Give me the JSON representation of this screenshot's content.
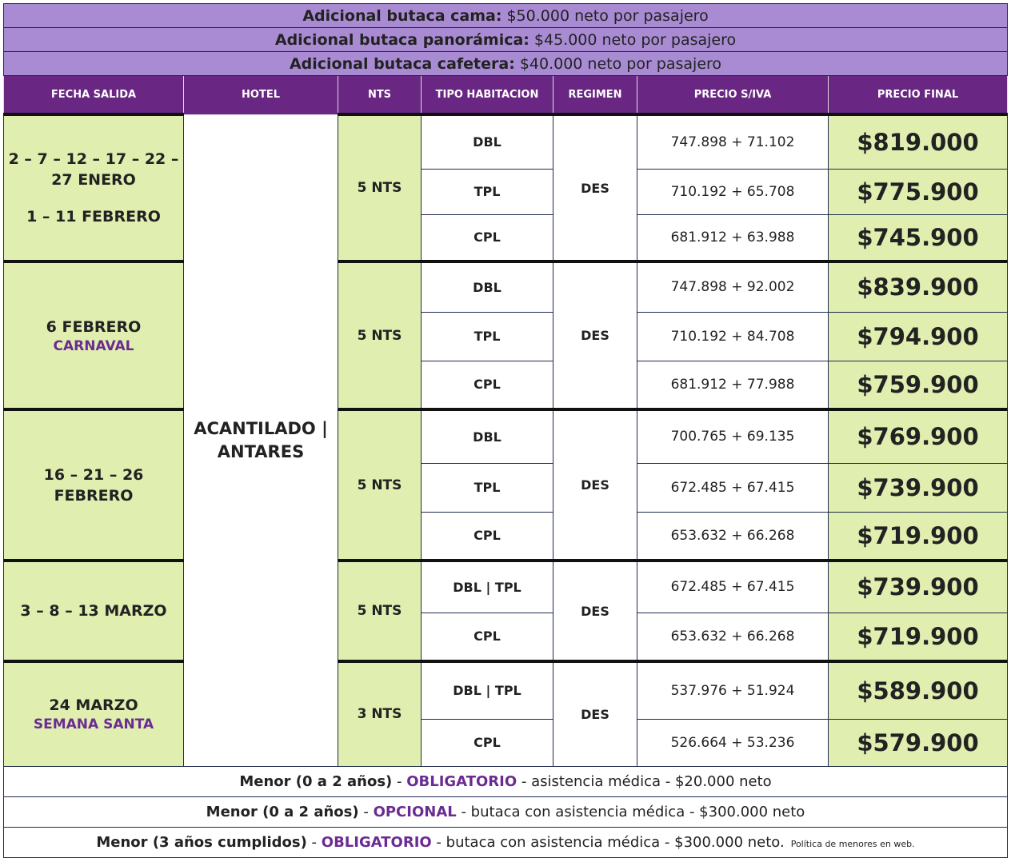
{
  "supplements": [
    {
      "label": "Adicional butaca cama:",
      "text": "$50.000 neto por pasajero"
    },
    {
      "label": "Adicional butaca panorámica:",
      "text": "$45.000 neto por pasajero"
    },
    {
      "label": "Adicional butaca cafetera:",
      "text": "$40.000 neto por pasajero"
    }
  ],
  "table": {
    "headers": [
      "FECHA SALIDA",
      "HOTEL",
      "NTS",
      "TIPO HABITACION",
      "REGIMEN",
      "PRECIO S/IVA",
      "PRECIO FINAL"
    ],
    "hotel": "ACANTILADO | ANTARES",
    "groups": [
      {
        "dates": [
          "2 – 7 – 12 – 17 – 22 – 27 ENERO",
          "1 – 11 FEBRERO"
        ],
        "nts": "5 NTS",
        "regimen": "DES",
        "rows": [
          {
            "room": "DBL",
            "base": "747.898 + 71.102",
            "final": "$819.000"
          },
          {
            "room": "TPL",
            "base": "710.192 + 65.708",
            "final": "$775.900"
          },
          {
            "room": "CPL",
            "base": "681.912 + 63.988",
            "final": "$745.900"
          }
        ]
      },
      {
        "dates": [
          "6 FEBRERO"
        ],
        "note": "CARNAVAL",
        "nts": "5 NTS",
        "regimen": "DES",
        "rows": [
          {
            "room": "DBL",
            "base": "747.898 + 92.002",
            "final": "$839.900"
          },
          {
            "room": "TPL",
            "base": "710.192 + 84.708",
            "final": "$794.900"
          },
          {
            "room": "CPL",
            "base": "681.912 + 77.988",
            "final": "$759.900"
          }
        ]
      },
      {
        "dates": [
          "16 – 21 – 26 FEBRERO"
        ],
        "nts": "5 NTS",
        "regimen": "DES",
        "rows": [
          {
            "room": "DBL",
            "base": "700.765 + 69.135",
            "final": "$769.900"
          },
          {
            "room": "TPL",
            "base": "672.485 + 67.415",
            "final": "$739.900"
          },
          {
            "room": "CPL",
            "base": "653.632 + 66.268",
            "final": "$719.900"
          }
        ]
      },
      {
        "dates": [
          "3 – 8 – 13 MARZO"
        ],
        "nts": "5 NTS",
        "regimen": "DES",
        "rows": [
          {
            "room": "DBL | TPL",
            "base": "672.485 + 67.415",
            "final": "$739.900"
          },
          {
            "room": "CPL",
            "base": "653.632 + 66.268",
            "final": "$719.900"
          }
        ]
      },
      {
        "dates": [
          "24 MARZO"
        ],
        "note": "SEMANA SANTA",
        "nts": "3 NTS",
        "regimen": "DES",
        "rows": [
          {
            "room": "DBL | TPL",
            "base": "537.976 + 51.924",
            "final": "$589.900"
          },
          {
            "room": "CPL",
            "base": "526.664 + 53.236",
            "final": "$579.900"
          }
        ]
      }
    ]
  },
  "notes": [
    [
      {
        "text": "Menor (0 a 2 años)",
        "style": "bold"
      },
      {
        "text": " - "
      },
      {
        "text": "OBLIGATORIO",
        "style": "accent"
      },
      {
        "text": " - asistencia médica - $20.000 neto"
      }
    ],
    [
      {
        "text": "Menor (0 a 2 años)",
        "style": "bold"
      },
      {
        "text": " - "
      },
      {
        "text": "OPCIONAL",
        "style": "accent"
      },
      {
        "text": " - butaca con asistencia médica - $300.000 neto"
      }
    ],
    [
      {
        "text": "Menor (3 años cumplidos)",
        "style": "bold"
      },
      {
        "text": " - "
      },
      {
        "text": "OBLIGATORIO",
        "style": "accent"
      },
      {
        "text": " - butaca con asistencia médica - $300.000 neto."
      },
      {
        "text": "Política de menores en web.",
        "style": "small"
      }
    ]
  ]
}
